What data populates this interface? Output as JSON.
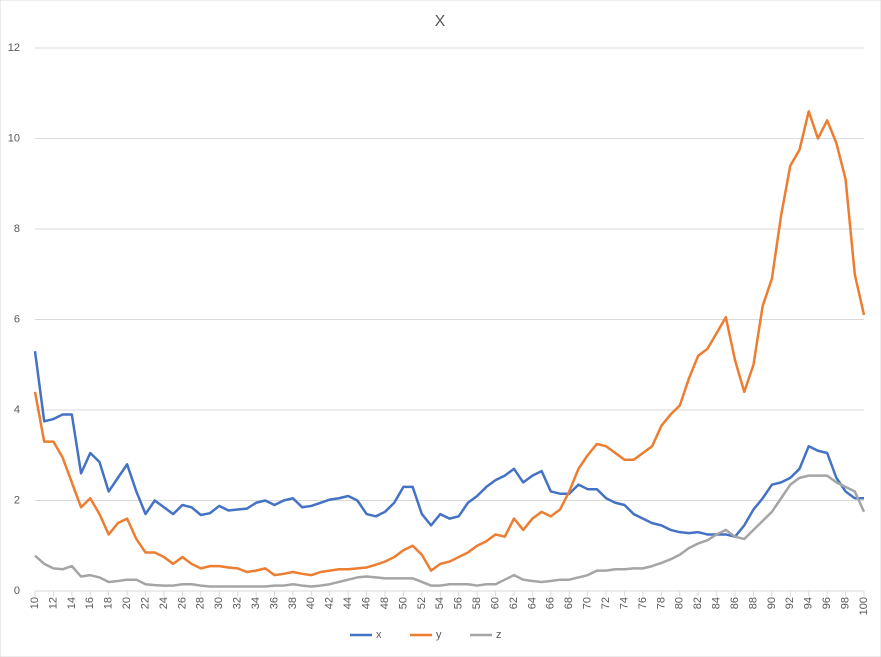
{
  "chart_data": {
    "type": "line",
    "title": "X",
    "x": [
      10,
      11,
      12,
      13,
      14,
      15,
      16,
      17,
      18,
      19,
      20,
      21,
      22,
      23,
      24,
      25,
      26,
      27,
      28,
      29,
      30,
      31,
      32,
      33,
      34,
      35,
      36,
      37,
      38,
      39,
      40,
      41,
      42,
      43,
      44,
      45,
      46,
      47,
      48,
      49,
      50,
      51,
      52,
      53,
      54,
      55,
      56,
      57,
      58,
      59,
      60,
      61,
      62,
      63,
      64,
      65,
      66,
      67,
      68,
      69,
      70,
      71,
      72,
      73,
      74,
      75,
      76,
      77,
      78,
      79,
      80,
      81,
      82,
      83,
      84,
      85,
      86,
      87,
      88,
      89,
      90,
      91,
      92,
      93,
      94,
      95,
      96,
      97,
      98,
      99,
      100
    ],
    "series": [
      {
        "name": "x",
        "color": "#4472c4",
        "values": [
          5.3,
          3.75,
          3.8,
          3.9,
          3.9,
          2.6,
          3.05,
          2.85,
          2.2,
          2.5,
          2.8,
          2.2,
          1.7,
          2.0,
          1.85,
          1.7,
          1.9,
          1.85,
          1.68,
          1.72,
          1.88,
          1.78,
          1.8,
          1.82,
          1.95,
          2.0,
          1.9,
          2.0,
          2.05,
          1.85,
          1.88,
          1.95,
          2.02,
          2.05,
          2.1,
          2.0,
          1.7,
          1.65,
          1.75,
          1.95,
          2.3,
          2.3,
          1.7,
          1.45,
          1.7,
          1.6,
          1.65,
          1.95,
          2.1,
          2.3,
          2.45,
          2.55,
          2.7,
          2.4,
          2.55,
          2.65,
          2.2,
          2.15,
          2.15,
          2.35,
          2.25,
          2.25,
          2.05,
          1.95,
          1.9,
          1.7,
          1.6,
          1.5,
          1.45,
          1.35,
          1.3,
          1.28,
          1.3,
          1.25,
          1.25,
          1.25,
          1.2,
          1.45,
          1.8,
          2.05,
          2.35,
          2.4,
          2.5,
          2.7,
          3.2,
          3.1,
          3.05,
          2.5,
          2.2,
          2.05,
          2.05
        ]
      },
      {
        "name": "y",
        "color": "#ed7d31",
        "values": [
          4.4,
          3.3,
          3.3,
          2.95,
          2.4,
          1.85,
          2.05,
          1.7,
          1.25,
          1.5,
          1.6,
          1.15,
          0.85,
          0.85,
          0.75,
          0.6,
          0.75,
          0.6,
          0.5,
          0.55,
          0.55,
          0.52,
          0.5,
          0.42,
          0.45,
          0.5,
          0.35,
          0.38,
          0.42,
          0.38,
          0.35,
          0.42,
          0.45,
          0.48,
          0.48,
          0.5,
          0.52,
          0.58,
          0.65,
          0.75,
          0.9,
          1.0,
          0.8,
          0.45,
          0.6,
          0.65,
          0.75,
          0.85,
          1.0,
          1.1,
          1.25,
          1.2,
          1.6,
          1.35,
          1.6,
          1.75,
          1.65,
          1.8,
          2.2,
          2.7,
          3.0,
          3.25,
          3.2,
          3.05,
          2.9,
          2.9,
          3.05,
          3.2,
          3.65,
          3.9,
          4.1,
          4.7,
          5.2,
          5.35,
          5.7,
          6.05,
          5.1,
          4.4,
          5.0,
          6.3,
          6.9,
          8.3,
          9.4,
          9.75,
          10.6,
          10.0,
          10.4,
          9.9,
          9.1,
          7.0,
          6.1
        ]
      },
      {
        "name": "z",
        "color": "#a5a5a5",
        "values": [
          0.78,
          0.6,
          0.5,
          0.48,
          0.55,
          0.32,
          0.35,
          0.3,
          0.2,
          0.22,
          0.25,
          0.25,
          0.15,
          0.13,
          0.12,
          0.12,
          0.15,
          0.15,
          0.12,
          0.1,
          0.1,
          0.1,
          0.1,
          0.1,
          0.1,
          0.1,
          0.12,
          0.12,
          0.15,
          0.12,
          0.1,
          0.12,
          0.15,
          0.2,
          0.25,
          0.3,
          0.32,
          0.3,
          0.28,
          0.28,
          0.28,
          0.28,
          0.2,
          0.12,
          0.12,
          0.15,
          0.15,
          0.15,
          0.12,
          0.15,
          0.15,
          0.25,
          0.35,
          0.25,
          0.22,
          0.2,
          0.22,
          0.25,
          0.25,
          0.3,
          0.35,
          0.45,
          0.45,
          0.48,
          0.48,
          0.5,
          0.5,
          0.55,
          0.62,
          0.7,
          0.8,
          0.95,
          1.05,
          1.12,
          1.25,
          1.35,
          1.2,
          1.15,
          1.35,
          1.55,
          1.75,
          2.05,
          2.35,
          2.5,
          2.55,
          2.55,
          2.55,
          2.4,
          2.3,
          2.2,
          1.75
        ]
      }
    ],
    "xlim": [
      10,
      100
    ],
    "xticks": [
      10,
      12,
      14,
      16,
      18,
      20,
      22,
      24,
      26,
      28,
      30,
      32,
      34,
      36,
      38,
      40,
      42,
      44,
      46,
      48,
      50,
      52,
      54,
      56,
      58,
      60,
      62,
      64,
      66,
      68,
      70,
      72,
      74,
      76,
      78,
      80,
      82,
      84,
      86,
      88,
      90,
      92,
      94,
      96,
      98,
      100
    ],
    "ylim": [
      0,
      12
    ],
    "yticks": [
      0,
      2,
      4,
      6,
      8,
      10,
      12
    ],
    "grid": true,
    "legend": "bottom"
  }
}
